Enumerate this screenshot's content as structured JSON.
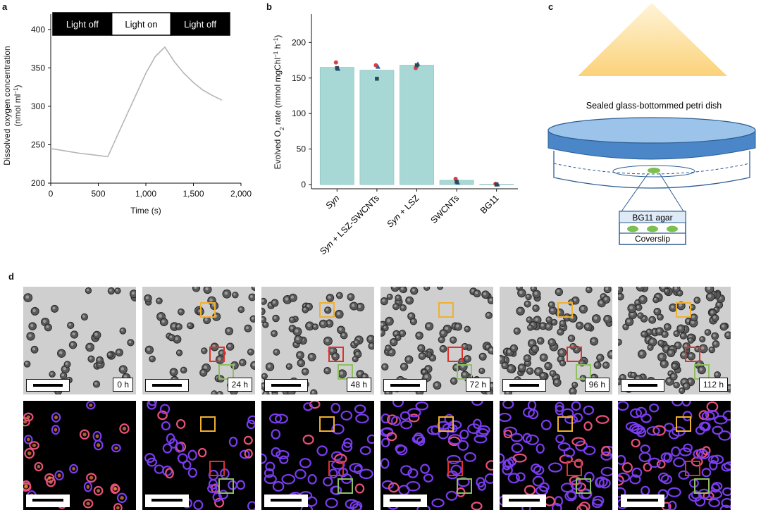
{
  "panels": {
    "a": "a",
    "b": "b",
    "c": "c",
    "d": "d"
  },
  "chart_data": [
    {
      "type": "line",
      "panel": "a",
      "xlabel": "Time (s)",
      "ylabel_line1": "Dissolved oxygen concentration",
      "ylabel_line2": "(nmol ml",
      "ylabel_sup": "−1",
      "ylabel_end": ")",
      "xlim": [
        0,
        2000
      ],
      "ylim": [
        200,
        420
      ],
      "xticks": [
        0,
        500,
        1000,
        1500,
        2000
      ],
      "xtick_labels": [
        "0",
        "500",
        "1,000",
        "1,500",
        "2,000"
      ],
      "yticks": [
        200,
        250,
        300,
        350,
        400
      ],
      "ytick_labels": [
        "200",
        "250",
        "300",
        "350",
        "400"
      ],
      "light_bar": [
        {
          "label": "Light off",
          "from": 0,
          "to": 600,
          "state": "off"
        },
        {
          "label": "Light on",
          "from": 600,
          "to": 1200,
          "state": "on"
        },
        {
          "label": "Light off",
          "from": 1200,
          "to": 1800,
          "state": "off"
        }
      ],
      "series": [
        {
          "color": "#b5b5b5",
          "x": [
            0,
            100,
            200,
            300,
            400,
            500,
            600,
            700,
            800,
            900,
            1000,
            1100,
            1200,
            1300,
            1400,
            1500,
            1600,
            1700,
            1800
          ],
          "y": [
            245,
            243,
            241,
            239,
            237.5,
            236,
            234.5,
            262,
            289,
            316,
            343,
            365,
            377,
            358,
            343,
            331,
            321,
            314,
            308
          ]
        }
      ]
    },
    {
      "type": "bar",
      "panel": "b",
      "categories": [
        "Syn",
        "Syn + LSZ-SWCNTs",
        "Syn + LSZ",
        "SWCNTs",
        "BG11"
      ],
      "category_italic_prefix": [
        "Syn",
        "Syn",
        "Syn",
        "",
        ""
      ],
      "category_rest": [
        "",
        " + LSZ-SWCNTs",
        " + LSZ",
        "SWCNTs",
        "BG11"
      ],
      "values": [
        165,
        161,
        168,
        6,
        0.5
      ],
      "bar_color": "#a8d8d6",
      "ylim": [
        0,
        240
      ],
      "yticks": [
        0,
        50,
        100,
        150,
        200
      ],
      "ytick_labels": [
        "0",
        "50",
        "100",
        "150",
        "200"
      ],
      "ylabel_parts": [
        "Evolved O",
        "2",
        " rate (mmol mgChl",
        "−1",
        " h",
        "−1",
        ")"
      ],
      "replicates": [
        {
          "name": "red",
          "color": "#d9404a",
          "marker": "circle",
          "values": [
            172,
            168,
            164,
            8,
            1
          ]
        },
        {
          "name": "blue",
          "color": "#2f5fa8",
          "marker": "triangle",
          "values": [
            163,
            166,
            170,
            3,
            0.5
          ]
        },
        {
          "name": "dark",
          "color": "#2c4a52",
          "marker": "square",
          "values": [
            164,
            149,
            168,
            4,
            0
          ]
        }
      ]
    }
  ],
  "diagram_c": {
    "dish_label": "Sealed glass-bottommed petri dish",
    "agar_label": "BG11 agar",
    "coverslip_label": "Coverslip"
  },
  "timelapse": {
    "times": [
      "0 h",
      "24 h",
      "48 h",
      "72 h",
      "96 h",
      "112 h"
    ]
  },
  "colors": {
    "roi_yellow": "#f0b030",
    "roi_red": "#e0302a",
    "roi_green": "#8cc060",
    "dish_blue": "#4a86c8",
    "light_yellow": "#fbd27a"
  }
}
